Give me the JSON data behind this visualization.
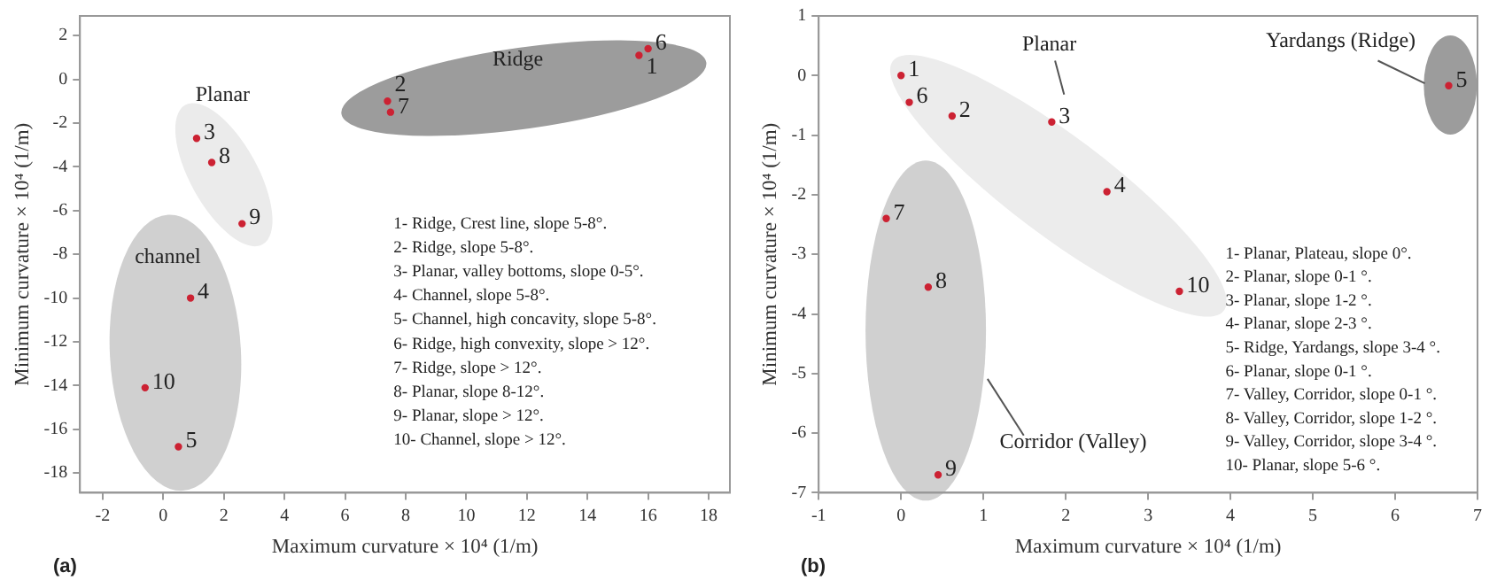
{
  "chart_data": [
    {
      "type": "scatter",
      "xlabel": "Maximum curvature × 10⁴ (1/m)",
      "ylabel": "Minimum curvature × 10⁴ (1/m)",
      "xlim": [
        -2.75,
        18.7
      ],
      "ylim": [
        -18.9,
        2.9
      ],
      "xticks": [
        -2,
        0,
        2,
        4,
        6,
        8,
        10,
        12,
        14,
        16,
        18
      ],
      "yticks": [
        -18,
        -16,
        -14,
        -12,
        -10,
        -8,
        -6,
        -4,
        -2,
        0,
        2
      ],
      "marker": "circle",
      "series": [
        {
          "color": "#cc2233",
          "x": [
            15.7,
            7.4,
            1.1,
            0.9,
            0.5,
            16.0,
            7.5,
            1.6,
            2.6,
            -0.6
          ],
          "values": [
            1.1,
            -1.0,
            -2.7,
            -10.0,
            -16.8,
            1.4,
            -1.5,
            -3.8,
            -6.6,
            -14.1
          ]
        }
      ],
      "annotations": [
        {
          "text": "1",
          "x": 15.7,
          "y": 1.1
        },
        {
          "text": "2",
          "x": 7.4,
          "y": -1.0
        },
        {
          "text": "3",
          "x": 1.1,
          "y": -2.7
        },
        {
          "text": "4",
          "x": 0.9,
          "y": -10.0
        },
        {
          "text": "5",
          "x": 0.5,
          "y": -16.8
        },
        {
          "text": "6",
          "x": 16.0,
          "y": 1.4
        },
        {
          "text": "7",
          "x": 7.5,
          "y": -1.5
        },
        {
          "text": "8",
          "x": 1.6,
          "y": -3.8
        },
        {
          "text": "9",
          "x": 2.6,
          "y": -6.6
        },
        {
          "text": "10",
          "x": -0.6,
          "y": -14.1
        },
        "Ridge",
        "Planar",
        "channel",
        "1- Ridge, Crest line, slope 5-8°.",
        "2- Ridge, slope 5-8°.",
        "3- Planar, valley bottoms, slope 0-5°.",
        "4- Channel, slope 5-8°.",
        "5- Channel, high concavity, slope 5-8°.",
        "6- Ridge, high convexity, slope > 12°.",
        "7- Ridge, slope > 12°.",
        "8- Planar, slope 8-12°.",
        "9- Planar, slope > 12°.",
        "10- Channel, slope > 12°.",
        "(a)"
      ]
    },
    {
      "type": "scatter",
      "xlabel": "Maximum curvature × 10⁴ (1/m)",
      "ylabel": "Minimum curvature × 10⁴ (1/m)",
      "xlim": [
        -1,
        7
      ],
      "ylim": [
        -7,
        1
      ],
      "xticks": [
        -1,
        0,
        1,
        2,
        3,
        4,
        5,
        6,
        7
      ],
      "yticks": [
        -7,
        -6,
        -5,
        -4,
        -3,
        -2,
        -1,
        0,
        1
      ],
      "marker": "circle",
      "series": [
        {
          "color": "#cc2233",
          "x": [
            0.0,
            0.62,
            1.83,
            2.5,
            6.65,
            0.1,
            -0.18,
            0.33,
            0.45,
            3.38
          ],
          "values": [
            0.0,
            -0.68,
            -0.78,
            -1.95,
            -0.17,
            -0.45,
            -2.4,
            -3.55,
            -6.7,
            -3.62
          ]
        }
      ],
      "annotations": [
        {
          "text": "1",
          "x": 0.0,
          "y": 0.0
        },
        {
          "text": "2",
          "x": 0.62,
          "y": -0.68
        },
        {
          "text": "3",
          "x": 1.83,
          "y": -0.78
        },
        {
          "text": "4",
          "x": 2.5,
          "y": -1.95
        },
        {
          "text": "5",
          "x": 6.65,
          "y": -0.17
        },
        {
          "text": "6",
          "x": 0.1,
          "y": -0.45
        },
        {
          "text": "7",
          "x": -0.18,
          "y": -2.4
        },
        {
          "text": "8",
          "x": 0.33,
          "y": -3.55
        },
        {
          "text": "9",
          "x": 0.45,
          "y": -6.7
        },
        {
          "text": "10",
          "x": 3.38,
          "y": -3.62
        },
        "Planar",
        "Yardangs (Ridge)",
        "Corridor (Valley)",
        "1- Planar, Plateau, slope 0°.",
        "2- Planar, slope 0-1 °.",
        "3- Planar, slope 1-2 °.",
        "4- Planar, slope 2-3 °.",
        "5- Ridge, Yardangs, slope 3-4 °.",
        "6- Planar, slope 0-1 °.",
        "7- Valley, Corridor, slope 0-1 °.",
        "8- Valley, Corridor, slope 1-2 °.",
        "9- Valley, Corridor, slope 3-4 °.",
        "10- Planar, slope 5-6 °.",
        "(b)"
      ]
    }
  ]
}
